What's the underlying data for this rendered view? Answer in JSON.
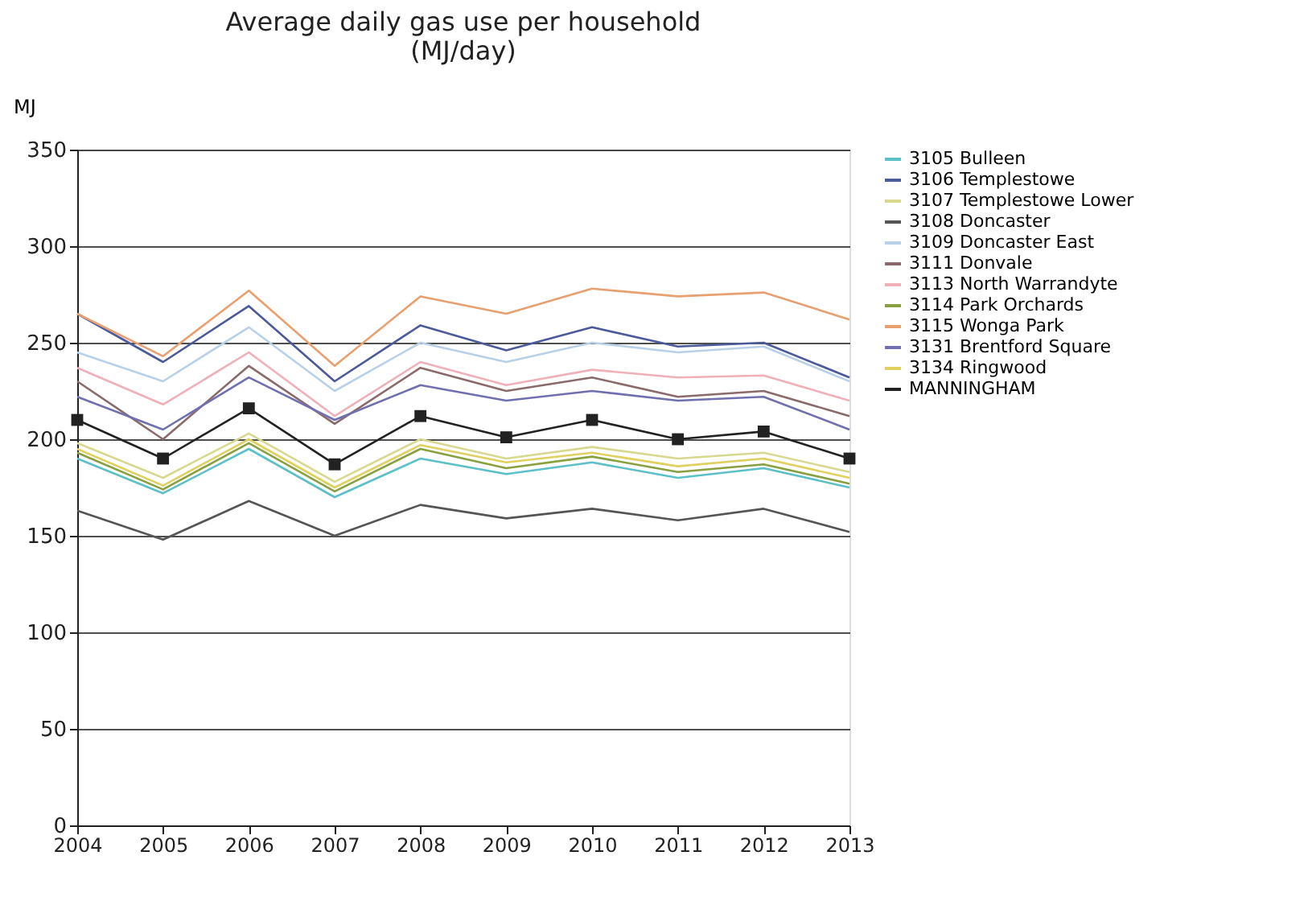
{
  "chart_data": {
    "type": "line",
    "title": "Average daily gas use per household\n(MJ/day)",
    "ylabel": "MJ",
    "x": [
      2004,
      2005,
      2006,
      2007,
      2008,
      2009,
      2010,
      2011,
      2012,
      2013
    ],
    "xlim": [
      2004,
      2013
    ],
    "xticks": [
      2004,
      2005,
      2006,
      2007,
      2008,
      2009,
      2010,
      2011,
      2012,
      2013
    ],
    "ylim": [
      0,
      350
    ],
    "yticks": [
      0,
      50,
      100,
      150,
      200,
      250,
      300,
      350
    ],
    "grid": "y",
    "legend": "right",
    "line_style": "solid",
    "series": [
      {
        "name": "3105 Bulleen",
        "color": "#5bc0c8",
        "values": [
          190,
          172,
          195,
          170,
          190,
          182,
          188,
          180,
          185,
          175
        ]
      },
      {
        "name": "3106 Templestowe",
        "color": "#4a5a9a",
        "values": [
          265,
          240,
          269,
          230,
          259,
          246,
          258,
          248,
          250,
          232
        ]
      },
      {
        "name": "3107 Templestowe Lower",
        "color": "#d8d890",
        "values": [
          198,
          180,
          203,
          178,
          200,
          190,
          196,
          190,
          193,
          183
        ]
      },
      {
        "name": "3108 Doncaster",
        "color": "#555555",
        "values": [
          163,
          148,
          168,
          150,
          166,
          159,
          164,
          158,
          164,
          152
        ]
      },
      {
        "name": "3109 Doncaster East",
        "color": "#b8d0e8",
        "values": [
          245,
          230,
          258,
          225,
          250,
          240,
          250,
          245,
          248,
          230
        ]
      },
      {
        "name": "3111 Donvale",
        "color": "#8a6a6a",
        "values": [
          230,
          200,
          238,
          208,
          237,
          225,
          232,
          222,
          225,
          212
        ]
      },
      {
        "name": "3113 North Warrandyte",
        "color": "#f0b0b8",
        "values": [
          237,
          218,
          245,
          212,
          240,
          228,
          236,
          232,
          233,
          220
        ]
      },
      {
        "name": "3114 Park Orchards",
        "color": "#8aa040",
        "values": [
          193,
          174,
          198,
          173,
          195,
          185,
          191,
          183,
          187,
          177
        ]
      },
      {
        "name": "3115 Wonga Park",
        "color": "#e8a070",
        "values": [
          265,
          243,
          277,
          238,
          274,
          265,
          278,
          274,
          276,
          262
        ]
      },
      {
        "name": "3131 Brentford Square",
        "color": "#7070b0",
        "values": [
          222,
          205,
          232,
          210,
          228,
          220,
          225,
          220,
          222,
          205
        ]
      },
      {
        "name": "3134 Ringwood",
        "color": "#e0d060",
        "values": [
          195,
          176,
          200,
          175,
          197,
          188,
          193,
          186,
          190,
          180
        ]
      },
      {
        "name": "MANNINGHAM",
        "color": "#222222",
        "marker": "square",
        "values": [
          210,
          190,
          216,
          187,
          212,
          201,
          210,
          200,
          204,
          190
        ]
      }
    ]
  }
}
